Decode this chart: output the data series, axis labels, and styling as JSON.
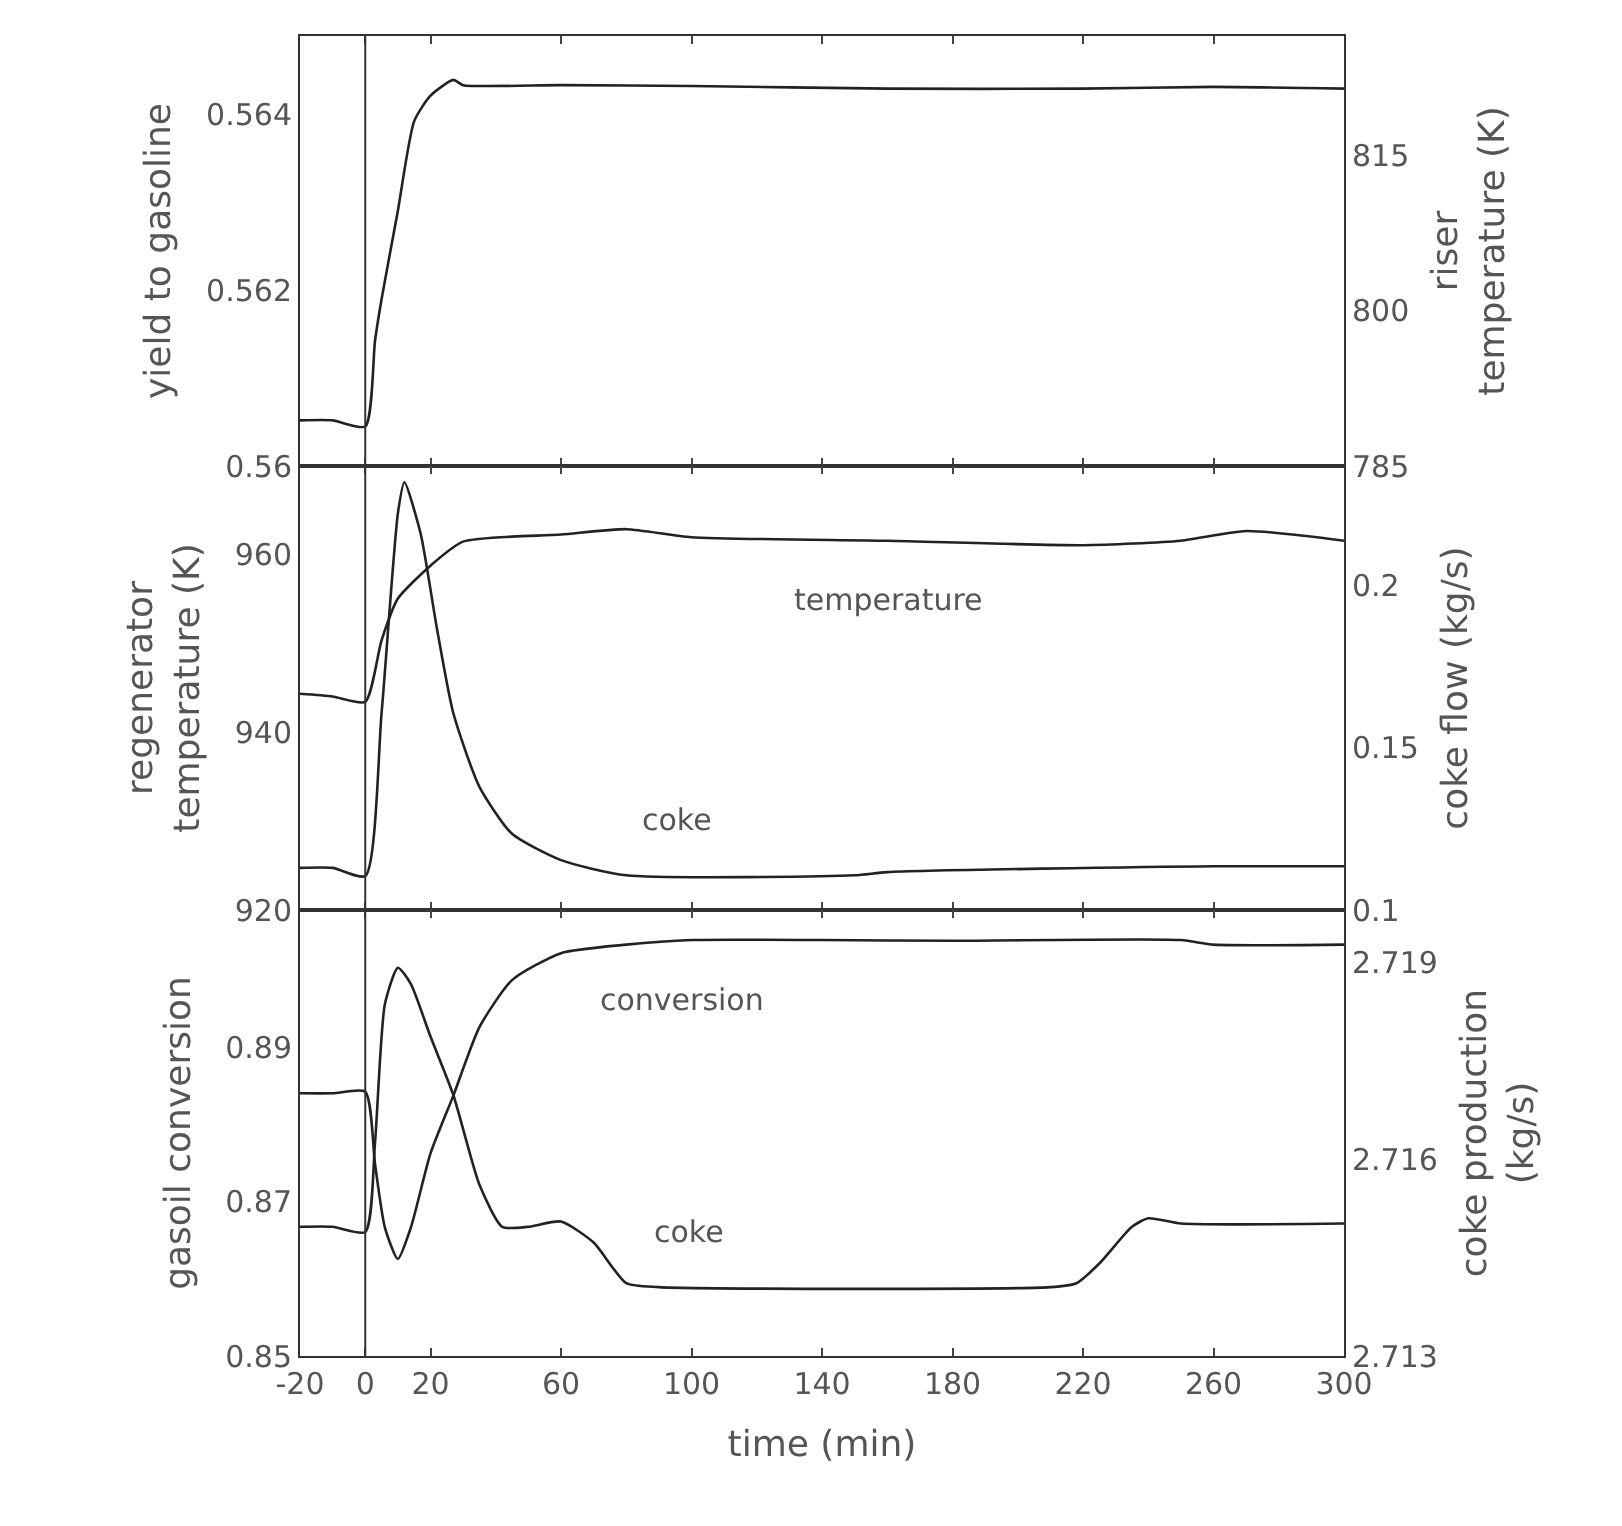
{
  "chart_data": [
    {
      "type": "line",
      "ylabel": "yield to gasoline",
      "y2label": "riser\ntemperature (K)",
      "xlim": [
        -20,
        300
      ],
      "xticks": [
        -20,
        0,
        20,
        60,
        100,
        140,
        180,
        220,
        260,
        300
      ],
      "ylim": [
        0.56,
        0.5649
      ],
      "yticks": [
        0.56,
        0.562,
        0.564
      ],
      "y2lim": [
        785,
        826.6
      ],
      "y2ticks": [
        785,
        800,
        815
      ],
      "tick_labels": "y",
      "ref_lines": [
        {
          "axis": "x",
          "value": 0
        }
      ],
      "series": [
        {
          "color": "#222222",
          "x": [
            -20,
            -10,
            0,
            3,
            5,
            10,
            15,
            20,
            27,
            30,
            60,
            100,
            160,
            220,
            260,
            300
          ],
          "values": [
            0.56052,
            0.56052,
            0.56045,
            0.56143,
            0.5619,
            0.56291,
            0.56393,
            0.56422,
            0.5644,
            0.56434,
            0.56434,
            0.56433,
            0.5643,
            0.5643,
            0.56432,
            0.5643
          ]
        }
      ]
    },
    {
      "type": "line",
      "ylabel": "regenerator\ntemperature (K)",
      "y2label": "coke flow (kg/s)",
      "xlim": [
        -20,
        300
      ],
      "xticks": [
        -20,
        0,
        20,
        60,
        100,
        140,
        180,
        220,
        260,
        300
      ],
      "ylim": [
        920,
        969.9
      ],
      "yticks": [
        920,
        940,
        960
      ],
      "y2lim": [
        0.1,
        0.237
      ],
      "y2ticks": [
        0.1,
        0.15,
        0.2
      ],
      "tick_labels": "y",
      "ref_lines": [
        {
          "axis": "x",
          "value": 0
        }
      ],
      "series": [
        {
          "name": "temperature",
          "color": "#222222",
          "x": [
            -20,
            -10,
            0,
            5,
            10,
            20,
            30,
            60,
            80,
            100,
            160,
            220,
            250,
            270,
            300
          ],
          "values": [
            944.3,
            944.0,
            943.4,
            950.3,
            955,
            958.7,
            961.4,
            962.2,
            962.8,
            961.9,
            961.5,
            961.0,
            961.5,
            962.6,
            961.5
          ]
        },
        {
          "name": "coke",
          "color": "#222222",
          "axis": "y2",
          "x": [
            -20,
            -10,
            0,
            5,
            10,
            12,
            17,
            22,
            27,
            35,
            45,
            60,
            80,
            150,
            160,
            260,
            300
          ],
          "values": [
            0.113,
            0.113,
            0.1105,
            0.1607,
            0.2224,
            0.232,
            0.216,
            0.1867,
            0.1607,
            0.138,
            0.1235,
            0.1154,
            0.1107,
            0.1107,
            0.1117,
            0.1135,
            0.1135
          ]
        }
      ]
    },
    {
      "type": "line",
      "xlabel": "time (min)",
      "ylabel": "gasoil conversion",
      "y2label": "coke production\n(kg/s)",
      "xlim": [
        -20,
        300
      ],
      "xticks": [
        -20,
        0,
        20,
        60,
        100,
        140,
        180,
        220,
        260,
        300
      ],
      "ylim": [
        0.85,
        0.9079
      ],
      "yticks": [
        0.85,
        0.87,
        0.89
      ],
      "y2lim": [
        2.713,
        2.7198
      ],
      "y2ticks": [
        2.713,
        2.716,
        2.719
      ],
      "ref_lines": [
        {
          "axis": "x",
          "value": 0
        }
      ],
      "series": [
        {
          "name": "conversion",
          "color": "#222222",
          "x": [
            -20,
            -10,
            0,
            3,
            6,
            10,
            14,
            20,
            27,
            35,
            45,
            60,
            80,
            100,
            140,
            180,
            250,
            260,
            300
          ],
          "values": [
            0.8841,
            0.8841,
            0.8843,
            0.8749,
            0.8667,
            0.8626,
            0.8667,
            0.8763,
            0.8838,
            0.8927,
            0.8988,
            0.9023,
            0.9034,
            0.904,
            0.904,
            0.9039,
            0.904,
            0.9034,
            0.9034
          ]
        },
        {
          "name": "coke",
          "color": "#222222",
          "axis": "y2",
          "x": [
            -20,
            -10,
            0,
            3,
            6,
            10,
            14,
            20,
            27,
            35,
            42,
            50,
            60,
            70,
            80,
            90,
            210,
            218,
            225,
            235,
            240,
            250,
            300
          ],
          "values": [
            2.71497,
            2.71497,
            2.71489,
            2.71626,
            2.71836,
            2.71892,
            2.71867,
            2.71787,
            2.71698,
            2.71561,
            2.71497,
            2.71497,
            2.71505,
            2.71473,
            2.71411,
            2.71405,
            2.71405,
            2.71411,
            2.71441,
            2.71497,
            2.7151,
            2.71502,
            2.71502
          ]
        }
      ]
    }
  ]
}
